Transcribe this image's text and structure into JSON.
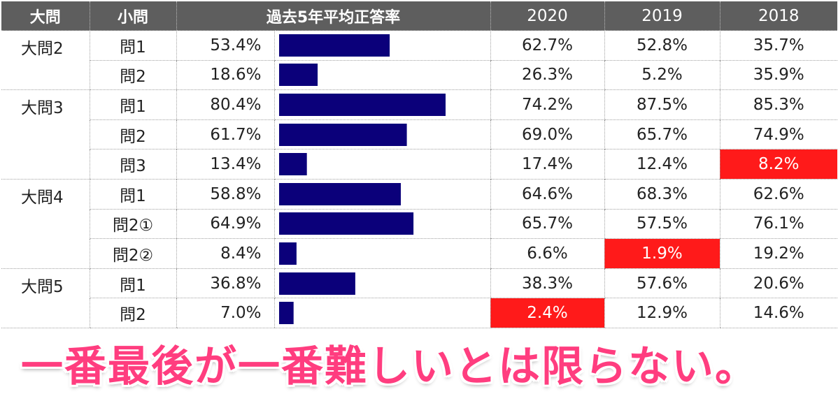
{
  "header": {
    "dai": "大問",
    "sho": "小問",
    "avg": "過去5年平均正答率",
    "years": [
      "2020",
      "2019",
      "2018"
    ]
  },
  "chart_data": {
    "type": "table",
    "bar_max": 100,
    "bar_color": "#0b007a",
    "highlight_color": "#ff1a1a",
    "rows": [
      {
        "dai": "大問2",
        "sho": "問1",
        "avg_label": "53.4%",
        "avg": 53.4,
        "y2020": "62.7%",
        "y2019": "52.8%",
        "y2018": "35.7%",
        "hl": ""
      },
      {
        "dai": "",
        "sho": "問2",
        "avg_label": "18.6%",
        "avg": 18.6,
        "y2020": "26.3%",
        "y2019": "5.2%",
        "y2018": "35.9%",
        "hl": ""
      },
      {
        "dai": "大問3",
        "sho": "問1",
        "avg_label": "80.4%",
        "avg": 80.4,
        "y2020": "74.2%",
        "y2019": "87.5%",
        "y2018": "85.3%",
        "hl": ""
      },
      {
        "dai": "",
        "sho": "問2",
        "avg_label": "61.7%",
        "avg": 61.7,
        "y2020": "69.0%",
        "y2019": "65.7%",
        "y2018": "74.9%",
        "hl": ""
      },
      {
        "dai": "",
        "sho": "問3",
        "avg_label": "13.4%",
        "avg": 13.4,
        "y2020": "17.4%",
        "y2019": "12.4%",
        "y2018": "8.2%",
        "hl": "2018"
      },
      {
        "dai": "大問4",
        "sho": "問1",
        "avg_label": "58.8%",
        "avg": 58.8,
        "y2020": "64.6%",
        "y2019": "68.3%",
        "y2018": "62.6%",
        "hl": ""
      },
      {
        "dai": "",
        "sho": "問2①",
        "avg_label": "64.9%",
        "avg": 64.9,
        "y2020": "65.7%",
        "y2019": "57.5%",
        "y2018": "76.1%",
        "hl": ""
      },
      {
        "dai": "",
        "sho": "問2②",
        "avg_label": "8.4%",
        "avg": 8.4,
        "y2020": "6.6%",
        "y2019": "1.9%",
        "y2018": "19.2%",
        "hl": "2019"
      },
      {
        "dai": "大問5",
        "sho": "問1",
        "avg_label": "36.8%",
        "avg": 36.8,
        "y2020": "38.3%",
        "y2019": "57.6%",
        "y2018": "20.6%",
        "hl": ""
      },
      {
        "dai": "",
        "sho": "問2",
        "avg_label": "7.0%",
        "avg": 7.0,
        "y2020": "2.4%",
        "y2019": "12.9%",
        "y2018": "14.6%",
        "hl": "2020"
      }
    ]
  },
  "caption": "一番最後が一番難しいとは限らない。"
}
